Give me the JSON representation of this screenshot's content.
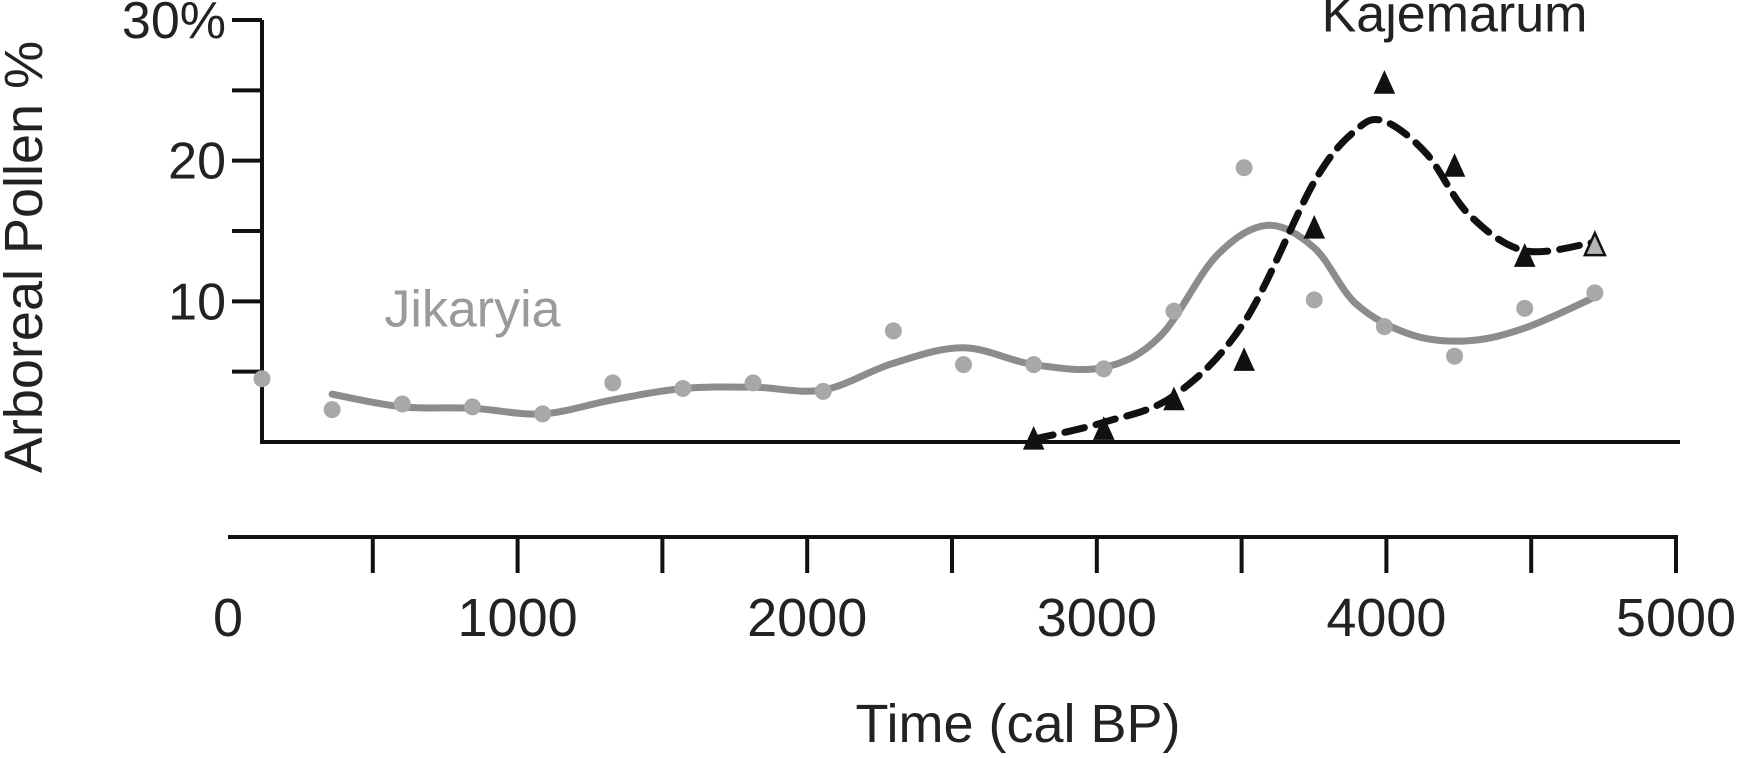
{
  "chart_data": {
    "type": "scatter",
    "ylabel": "Arboreal Pollen %",
    "xlabel": "Time (cal BP)",
    "xlim": [
      0,
      5000
    ],
    "ylim": [
      0,
      30
    ],
    "x_ticks": [
      {
        "value": 0,
        "label": "0"
      },
      {
        "value": 1000,
        "label": "1000"
      },
      {
        "value": 2000,
        "label": "2000"
      },
      {
        "value": 3000,
        "label": "3000"
      },
      {
        "value": 4000,
        "label": "4000"
      },
      {
        "value": 5000,
        "label": "5000"
      }
    ],
    "x_minor_ticks": [
      500,
      1500,
      2500,
      3500,
      4500
    ],
    "y_ticks": [
      {
        "value": 10,
        "label": "10"
      },
      {
        "value": 20,
        "label": "20"
      },
      {
        "value": 30,
        "label": "30%"
      }
    ],
    "y_minor_ticks": [
      5,
      15,
      25
    ],
    "grid": false,
    "series": [
      {
        "name": "Jikaryia",
        "color": "#8c8c8c",
        "point_color": "#a8a8a8",
        "marker": "circle",
        "line_style": "solid",
        "label_anchor": {
          "x": 750,
          "y": 8.2
        },
        "points": [
          {
            "x": 0,
            "y": 4.5
          },
          {
            "x": 250,
            "y": 2.3
          },
          {
            "x": 500,
            "y": 2.7
          },
          {
            "x": 750,
            "y": 2.5
          },
          {
            "x": 1000,
            "y": 2.0
          },
          {
            "x": 1250,
            "y": 4.2
          },
          {
            "x": 1500,
            "y": 3.8
          },
          {
            "x": 1750,
            "y": 4.2
          },
          {
            "x": 2000,
            "y": 3.6
          },
          {
            "x": 2250,
            "y": 7.9
          },
          {
            "x": 2500,
            "y": 5.5
          },
          {
            "x": 2750,
            "y": 5.5
          },
          {
            "x": 3000,
            "y": 5.2
          },
          {
            "x": 3250,
            "y": 9.3
          },
          {
            "x": 3500,
            "y": 19.5
          },
          {
            "x": 3750,
            "y": 10.1
          },
          {
            "x": 4000,
            "y": 8.2
          },
          {
            "x": 4250,
            "y": 6.1
          },
          {
            "x": 4500,
            "y": 9.5
          },
          {
            "x": 4750,
            "y": 10.6
          }
        ],
        "trend": [
          {
            "x": 250,
            "y": 3.4
          },
          {
            "x": 500,
            "y": 2.5
          },
          {
            "x": 750,
            "y": 2.4
          },
          {
            "x": 1000,
            "y": 2.0
          },
          {
            "x": 1250,
            "y": 3.0
          },
          {
            "x": 1500,
            "y": 3.8
          },
          {
            "x": 1750,
            "y": 3.9
          },
          {
            "x": 2000,
            "y": 3.7
          },
          {
            "x": 2250,
            "y": 5.6
          },
          {
            "x": 2500,
            "y": 6.7
          },
          {
            "x": 2750,
            "y": 5.5
          },
          {
            "x": 3000,
            "y": 5.3
          },
          {
            "x": 3200,
            "y": 7.5
          },
          {
            "x": 3400,
            "y": 13.2
          },
          {
            "x": 3580,
            "y": 15.4
          },
          {
            "x": 3750,
            "y": 13.8
          },
          {
            "x": 3900,
            "y": 9.8
          },
          {
            "x": 4100,
            "y": 7.6
          },
          {
            "x": 4300,
            "y": 7.2
          },
          {
            "x": 4500,
            "y": 8.1
          },
          {
            "x": 4750,
            "y": 10.3
          }
        ]
      },
      {
        "name": "Kajemarum",
        "color": "#111111",
        "point_color": "#111111",
        "marker": "triangle",
        "line_style": "dashed",
        "label_anchor": {
          "x": 4250,
          "y": 29.2
        },
        "points": [
          {
            "x": 2750,
            "y": 0.2
          },
          {
            "x": 3000,
            "y": 0.9
          },
          {
            "x": 3250,
            "y": 3.0
          },
          {
            "x": 3500,
            "y": 5.8
          },
          {
            "x": 3750,
            "y": 15.2
          },
          {
            "x": 4000,
            "y": 25.5
          },
          {
            "x": 4250,
            "y": 19.6
          },
          {
            "x": 4500,
            "y": 13.2
          },
          {
            "x": 4750,
            "y": 14.0,
            "highlight": true
          }
        ],
        "trend": [
          {
            "x": 2750,
            "y": 0.2
          },
          {
            "x": 3000,
            "y": 1.4
          },
          {
            "x": 3250,
            "y": 3.3
          },
          {
            "x": 3500,
            "y": 8.5
          },
          {
            "x": 3750,
            "y": 18.5
          },
          {
            "x": 3900,
            "y": 22.2
          },
          {
            "x": 4000,
            "y": 22.8
          },
          {
            "x": 4150,
            "y": 20.5
          },
          {
            "x": 4300,
            "y": 16.2
          },
          {
            "x": 4500,
            "y": 13.6
          },
          {
            "x": 4750,
            "y": 14.2
          }
        ]
      }
    ]
  }
}
